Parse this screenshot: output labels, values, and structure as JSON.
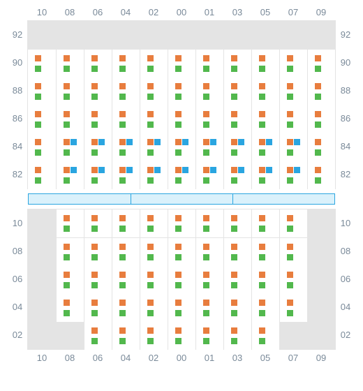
{
  "colors": {
    "label_text": "#7a8a99",
    "grid_border": "#e4e4e4",
    "cell_empty_bg": "#e4e4e4",
    "cell_filled_bg": "#ffffff",
    "square_orange": "#e87d3e",
    "square_green": "#52b84d",
    "square_blue": "#2aa5e0",
    "sep_fill": "#daf1fb",
    "sep_border": "#2aa5e0"
  },
  "layout": {
    "cell_size": 40,
    "square_size": 9,
    "label_fontsize": 13
  },
  "columns": [
    "10",
    "08",
    "06",
    "04",
    "02",
    "00",
    "01",
    "03",
    "05",
    "07",
    "09"
  ],
  "top_panel": {
    "rows": [
      "92",
      "90",
      "88",
      "86",
      "84",
      "82"
    ],
    "cells": [
      [
        "empty",
        "empty",
        "empty",
        "empty",
        "empty",
        "empty",
        "empty",
        "empty",
        "empty",
        "empty",
        "empty"
      ],
      [
        "og",
        "og",
        "og",
        "og",
        "og",
        "og",
        "og",
        "og",
        "og",
        "og",
        "og"
      ],
      [
        "og",
        "og",
        "og",
        "og",
        "og",
        "og",
        "og",
        "og",
        "og",
        "og",
        "og"
      ],
      [
        "og",
        "og",
        "og",
        "og",
        "og",
        "og",
        "og",
        "og",
        "og",
        "og",
        "og"
      ],
      [
        "og",
        "ogb",
        "ogb",
        "ogb",
        "ogb",
        "ogb",
        "ogb",
        "ogb",
        "ogb",
        "ogb",
        "og"
      ],
      [
        "og",
        "ogb",
        "ogb",
        "ogb",
        "ogb",
        "ogb",
        "ogb",
        "ogb",
        "ogb",
        "ogb",
        "og"
      ]
    ]
  },
  "separator": {
    "segments": 3,
    "segment_width": 146
  },
  "bottom_panel": {
    "rows": [
      "10",
      "08",
      "06",
      "04",
      "02"
    ],
    "cells": [
      [
        "empty",
        "og",
        "og",
        "og",
        "og",
        "og",
        "og",
        "og",
        "og",
        "og",
        "empty"
      ],
      [
        "empty",
        "og",
        "og",
        "og",
        "og",
        "og",
        "og",
        "og",
        "og",
        "og",
        "empty"
      ],
      [
        "empty",
        "og",
        "og",
        "og",
        "og",
        "og",
        "og",
        "og",
        "og",
        "og",
        "empty"
      ],
      [
        "empty",
        "og",
        "og",
        "og",
        "og",
        "og",
        "og",
        "og",
        "og",
        "og",
        "empty"
      ],
      [
        "empty",
        "empty",
        "og",
        "og",
        "og",
        "og",
        "og",
        "og",
        "og",
        "empty",
        "empty"
      ]
    ]
  }
}
